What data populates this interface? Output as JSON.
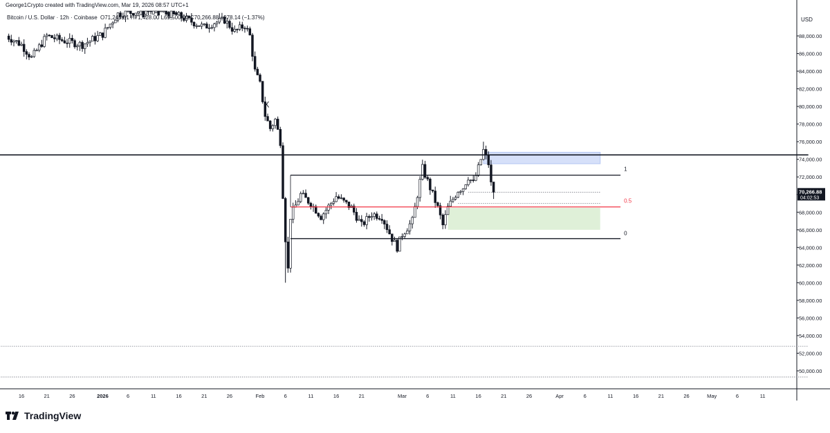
{
  "header": {
    "credit": "George1Crypto created with TradingView.com, Mar 19, 2026 08:57 UTC+1",
    "symbol": "Bitcoin / U.S. Dollar · 12h · Coinbase",
    "ohlc": "O71,245.01 H71,428.00 L69,500.00 C70,266.88 −978.14 (−1.37%)"
  },
  "currency_label": "USD",
  "brand": "TradingView",
  "last_price": {
    "value": "70,266.88",
    "countdown": "04:02:53",
    "color": "#131722"
  },
  "colors": {
    "candle": "#131722",
    "background": "#ffffff",
    "fib_mid": "#f23645",
    "blue_zone": "#d6e0f9",
    "green_zone": "#dff0d8"
  },
  "annotations": {
    "x_mark": "X",
    "fib_1": "1",
    "fib_05": "0.5",
    "fib_0": "0"
  },
  "chart_data": {
    "type": "candlestick",
    "title": "Bitcoin / U.S. Dollar · 12h · Coinbase",
    "ylim": [
      48500,
      91000
    ],
    "y_ticks": [
      "88,000.00",
      "86,000.00",
      "84,000.00",
      "82,000.00",
      "80,000.00",
      "78,000.00",
      "76,000.00",
      "74,000.00",
      "72,000.00",
      "70,000.00",
      "68,000.00",
      "66,000.00",
      "64,000.00",
      "62,000.00",
      "60,000.00",
      "58,000.00",
      "56,000.00",
      "54,000.00",
      "52,000.00",
      "50,000.00"
    ],
    "y_tick_values": [
      88000,
      86000,
      84000,
      82000,
      80000,
      78000,
      76000,
      74000,
      72000,
      70000,
      68000,
      66000,
      64000,
      62000,
      60000,
      58000,
      56000,
      54000,
      52000,
      50000
    ],
    "x_ticks": [
      {
        "label": "16",
        "date": "2025-12-16"
      },
      {
        "label": "21",
        "date": "2025-12-21"
      },
      {
        "label": "26",
        "date": "2025-12-26"
      },
      {
        "label": "2026",
        "date": "2026-01-01"
      },
      {
        "label": "6",
        "date": "2026-01-06"
      },
      {
        "label": "11",
        "date": "2026-01-11"
      },
      {
        "label": "16",
        "date": "2026-01-16"
      },
      {
        "label": "21",
        "date": "2026-01-21"
      },
      {
        "label": "26",
        "date": "2026-01-26"
      },
      {
        "label": "Feb",
        "date": "2026-02-01"
      },
      {
        "label": "6",
        "date": "2026-02-06"
      },
      {
        "label": "11",
        "date": "2026-02-11"
      },
      {
        "label": "16",
        "date": "2026-02-16"
      },
      {
        "label": "21",
        "date": "2026-02-21"
      },
      {
        "label": "Mar",
        "date": "2026-03-01"
      },
      {
        "label": "6",
        "date": "2026-03-06"
      },
      {
        "label": "11",
        "date": "2026-03-11"
      },
      {
        "label": "16",
        "date": "2026-03-16"
      },
      {
        "label": "21",
        "date": "2026-03-21"
      },
      {
        "label": "26",
        "date": "2026-03-26"
      },
      {
        "label": "Apr",
        "date": "2026-04-01"
      },
      {
        "label": "6",
        "date": "2026-04-06"
      },
      {
        "label": "11",
        "date": "2026-04-11"
      },
      {
        "label": "16",
        "date": "2026-04-16"
      },
      {
        "label": "21",
        "date": "2026-04-21"
      },
      {
        "label": "26",
        "date": "2026-04-26"
      },
      {
        "label": "May",
        "date": "2026-05-01"
      },
      {
        "label": "6",
        "date": "2026-05-06"
      },
      {
        "label": "11",
        "date": "2026-05-11"
      }
    ],
    "close_path": [
      [
        "2025-12-13",
        88000
      ],
      [
        "2025-12-16",
        87000
      ],
      [
        "2025-12-18",
        85500
      ],
      [
        "2025-12-21",
        88000
      ],
      [
        "2025-12-24",
        87500
      ],
      [
        "2025-12-28",
        87000
      ],
      [
        "2026-01-01",
        88200
      ],
      [
        "2026-01-04",
        90500
      ],
      [
        "2026-01-08",
        90800
      ],
      [
        "2026-01-12",
        91000
      ],
      [
        "2026-01-15",
        90500
      ],
      [
        "2026-01-19",
        89500
      ],
      [
        "2026-01-21",
        89000
      ],
      [
        "2026-01-23",
        89500
      ],
      [
        "2026-01-25",
        89800
      ],
      [
        "2026-01-27",
        88500
      ],
      [
        "2026-01-29",
        89200
      ],
      [
        "2026-01-30",
        88000
      ],
      [
        "2026-01-31",
        84000
      ],
      [
        "2026-02-01",
        82500
      ],
      [
        "2026-02-02",
        79000
      ],
      [
        "2026-02-03",
        77500
      ],
      [
        "2026-02-04",
        78500
      ],
      [
        "2026-02-05",
        76000
      ],
      [
        "2026-02-05T12",
        70000
      ],
      [
        "2026-02-06",
        65000
      ],
      [
        "2026-02-06T12",
        61500
      ],
      [
        "2026-02-07",
        67500
      ],
      [
        "2026-02-09",
        70000
      ],
      [
        "2026-02-11",
        69000
      ],
      [
        "2026-02-13",
        67500
      ],
      [
        "2026-02-16",
        69800
      ],
      [
        "2026-02-19",
        68500
      ],
      [
        "2026-02-21",
        66500
      ],
      [
        "2026-02-23",
        67800
      ],
      [
        "2026-02-25",
        67500
      ],
      [
        "2026-02-27",
        65000
      ],
      [
        "2026-02-28",
        64000
      ],
      [
        "2026-03-01",
        65500
      ],
      [
        "2026-03-03",
        67000
      ],
      [
        "2026-03-05",
        73000
      ],
      [
        "2026-03-06",
        71500
      ],
      [
        "2026-03-08",
        68500
      ],
      [
        "2026-03-09",
        66500
      ],
      [
        "2026-03-10",
        68500
      ],
      [
        "2026-03-12",
        70500
      ],
      [
        "2026-03-13",
        70800
      ],
      [
        "2026-03-14",
        72000
      ],
      [
        "2026-03-15",
        71300
      ],
      [
        "2026-03-16",
        73000
      ],
      [
        "2026-03-17",
        75000
      ],
      [
        "2026-03-18",
        73500
      ],
      [
        "2026-03-18T12",
        71200
      ],
      [
        "2026-03-19",
        70266.88
      ]
    ],
    "marked_extremes": [
      [
        "2026-02-06",
        60000,
        "low"
      ],
      [
        "2026-03-17",
        76000,
        "high"
      ]
    ],
    "horizontal_lines": [
      {
        "name": "resistance",
        "value": 74500,
        "color": "#131722",
        "from": "2025-12-10",
        "to": "2026-05-20"
      },
      {
        "name": "fib-1",
        "value": 72200,
        "color": "#131722",
        "from": "2026-02-07",
        "to": "2026-04-13"
      },
      {
        "name": "fib-0.5",
        "value": 68600,
        "color": "#f23645",
        "from": "2026-02-07",
        "to": "2026-04-13"
      },
      {
        "name": "fib-0",
        "value": 65000,
        "color": "#131722",
        "from": "2026-02-07",
        "to": "2026-04-13"
      }
    ],
    "dotted_lines": [
      {
        "value": 70266.88,
        "from": "2026-03-14",
        "to": "2026-04-09"
      },
      {
        "value": 69000,
        "from": "2026-03-12",
        "to": "2026-04-09"
      },
      {
        "value": 52800,
        "from": "2025-12-10",
        "to": "2026-05-20"
      },
      {
        "value": 49300,
        "from": "2025-12-10",
        "to": "2026-05-20"
      }
    ],
    "zones": [
      {
        "name": "supply-zone",
        "y0": 73500,
        "y1": 74800,
        "from": "2026-03-17",
        "to": "2026-04-09",
        "color": "#d6e0f9"
      },
      {
        "name": "demand-zone",
        "y0": 66000,
        "y1": 68500,
        "from": "2026-03-10",
        "to": "2026-04-09",
        "color": "#dff0d8"
      }
    ]
  }
}
